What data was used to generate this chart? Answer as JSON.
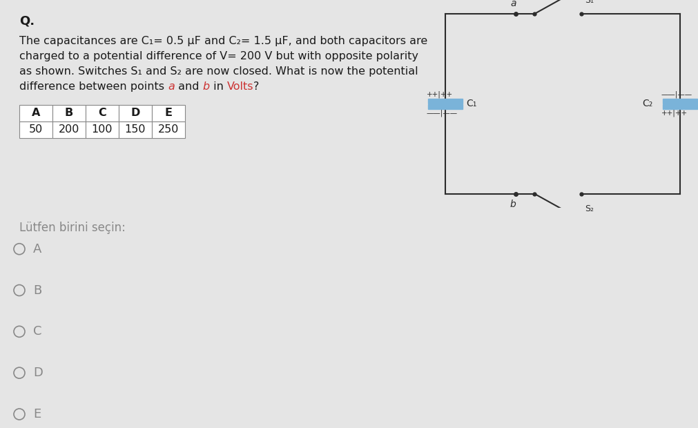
{
  "bg_top": "#ffffff",
  "bg_bottom": "#e5e5e5",
  "question_label": "Q.",
  "line1": "The capacitances are C₁= 0.5 μF and C₂= 1.5 μF, and both capacitors are",
  "line2": "charged to a potential difference of V= 200 V but with opposite polarity",
  "line3": "as shown. Switches S₁ and S₂ are now closed. What is now the potential",
  "line4_pre": "difference between points ",
  "line4_a": "a",
  "line4_mid": " and ",
  "line4_b": "b",
  "line4_mid2": " in ",
  "line4_volts": "Volts",
  "line4_end": "?",
  "table_headers": [
    "A",
    "B",
    "C",
    "D",
    "E"
  ],
  "table_values": [
    "50",
    "200",
    "100",
    "150",
    "250"
  ],
  "select_text": "Lütfen birini seçin:",
  "options": [
    "A",
    "B",
    "C",
    "D",
    "E"
  ],
  "circuit_color": "#2c2c2c",
  "capacitor_blue": "#7ab3d9",
  "red_color": "#cc3333",
  "text_color": "#1a1a1a",
  "grey_text": "#888888",
  "panel_split": 0.515
}
